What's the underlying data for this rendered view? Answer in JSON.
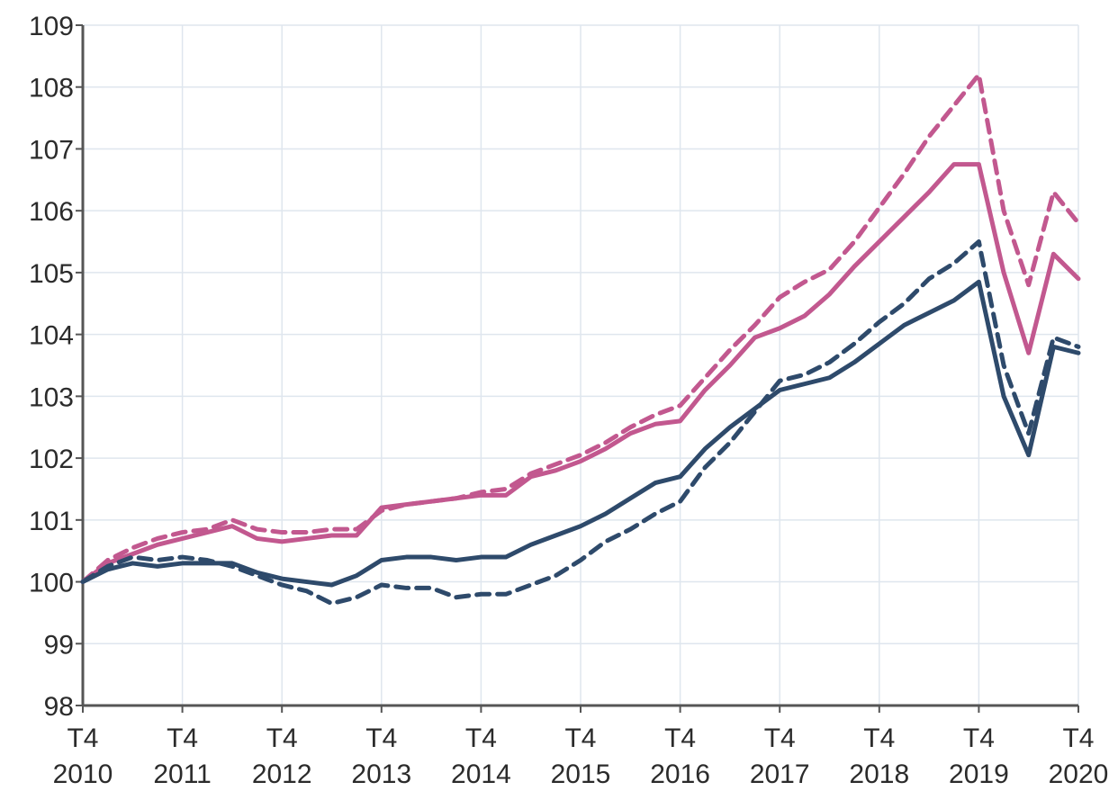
{
  "chart_data": {
    "type": "line",
    "title": "",
    "xlabel": "",
    "ylabel": "",
    "ylim": [
      98,
      109
    ],
    "yticks": [
      "98",
      "99",
      "100",
      "101",
      "102",
      "103",
      "104",
      "105",
      "106",
      "107",
      "108",
      "109"
    ],
    "xticks": [
      {
        "quarter": "T4",
        "year": "2010",
        "x": 0
      },
      {
        "quarter": "T4",
        "year": "2011",
        "x": 4
      },
      {
        "quarter": "T4",
        "year": "2012",
        "x": 8
      },
      {
        "quarter": "T4",
        "year": "2013",
        "x": 12
      },
      {
        "quarter": "T4",
        "year": "2014",
        "x": 16
      },
      {
        "quarter": "T4",
        "year": "2015",
        "x": 20
      },
      {
        "quarter": "T4",
        "year": "2016",
        "x": 24
      },
      {
        "quarter": "T4",
        "year": "2017",
        "x": 28
      },
      {
        "quarter": "T4",
        "year": "2018",
        "x": 32
      },
      {
        "quarter": "T4",
        "year": "2019",
        "x": 36
      },
      {
        "quarter": "T4",
        "year": "2020",
        "x": 40
      }
    ],
    "grid": true,
    "series": [
      {
        "color": "#c2588f",
        "dash": "dashed",
        "x": [
          0,
          1,
          2,
          3,
          4,
          5,
          6,
          7,
          8,
          9,
          10,
          11,
          12,
          13,
          14,
          15,
          16,
          17,
          18,
          19,
          20,
          21,
          22,
          23,
          24,
          25,
          26,
          27,
          28,
          29,
          30,
          31,
          32,
          33,
          34,
          35,
          36,
          37,
          38,
          39,
          40
        ],
        "values": [
          100.0,
          100.35,
          100.55,
          100.7,
          100.8,
          100.85,
          101.0,
          100.85,
          100.8,
          100.8,
          100.85,
          100.85,
          101.15,
          101.25,
          101.3,
          101.35,
          101.45,
          101.5,
          101.75,
          101.9,
          102.05,
          102.25,
          102.5,
          102.7,
          102.85,
          103.3,
          103.75,
          104.15,
          104.6,
          104.85,
          105.05,
          105.5,
          106.05,
          106.6,
          107.2,
          107.7,
          108.2,
          106.0,
          104.8,
          106.3,
          105.8
        ]
      },
      {
        "color": "#c2588f",
        "dash": "solid",
        "x": [
          0,
          1,
          2,
          3,
          4,
          5,
          6,
          7,
          8,
          9,
          10,
          11,
          12,
          13,
          14,
          15,
          16,
          17,
          18,
          19,
          20,
          21,
          22,
          23,
          24,
          25,
          26,
          27,
          28,
          29,
          30,
          31,
          32,
          33,
          34,
          35,
          36,
          37,
          38,
          39,
          40
        ],
        "values": [
          100.0,
          100.3,
          100.45,
          100.6,
          100.7,
          100.8,
          100.9,
          100.7,
          100.65,
          100.7,
          100.75,
          100.75,
          101.2,
          101.25,
          101.3,
          101.35,
          101.4,
          101.4,
          101.7,
          101.8,
          101.95,
          102.15,
          102.4,
          102.55,
          102.6,
          103.1,
          103.5,
          103.95,
          104.1,
          104.3,
          104.65,
          105.1,
          105.5,
          105.9,
          106.3,
          106.75,
          106.75,
          105.0,
          103.7,
          105.3,
          104.9
        ]
      },
      {
        "color": "#2e4a6b",
        "dash": "dashed",
        "x": [
          0,
          1,
          2,
          3,
          4,
          5,
          6,
          7,
          8,
          9,
          10,
          11,
          12,
          13,
          14,
          15,
          16,
          17,
          18,
          19,
          20,
          21,
          22,
          23,
          24,
          25,
          26,
          27,
          28,
          29,
          30,
          31,
          32,
          33,
          34,
          35,
          36,
          37,
          38,
          39,
          40
        ],
        "values": [
          100.0,
          100.25,
          100.4,
          100.35,
          100.4,
          100.35,
          100.25,
          100.1,
          99.95,
          99.85,
          99.65,
          99.75,
          99.95,
          99.9,
          99.9,
          99.75,
          99.8,
          99.8,
          99.95,
          100.1,
          100.35,
          100.65,
          100.85,
          101.1,
          101.3,
          101.85,
          102.25,
          102.75,
          103.25,
          103.35,
          103.55,
          103.85,
          104.2,
          104.5,
          104.9,
          105.15,
          105.5,
          103.5,
          102.4,
          103.95,
          103.8
        ]
      },
      {
        "color": "#2e4a6b",
        "dash": "solid",
        "x": [
          0,
          1,
          2,
          3,
          4,
          5,
          6,
          7,
          8,
          9,
          10,
          11,
          12,
          13,
          14,
          15,
          16,
          17,
          18,
          19,
          20,
          21,
          22,
          23,
          24,
          25,
          26,
          27,
          28,
          29,
          30,
          31,
          32,
          33,
          34,
          35,
          36,
          37,
          38,
          39,
          40
        ],
        "values": [
          100.0,
          100.2,
          100.3,
          100.25,
          100.3,
          100.3,
          100.3,
          100.15,
          100.05,
          100.0,
          99.95,
          100.1,
          100.35,
          100.4,
          100.4,
          100.35,
          100.4,
          100.4,
          100.6,
          100.75,
          100.9,
          101.1,
          101.35,
          101.6,
          101.7,
          102.15,
          102.5,
          102.8,
          103.1,
          103.2,
          103.3,
          103.55,
          103.85,
          104.15,
          104.35,
          104.55,
          104.85,
          103.0,
          102.05,
          103.8,
          103.7
        ]
      }
    ]
  }
}
